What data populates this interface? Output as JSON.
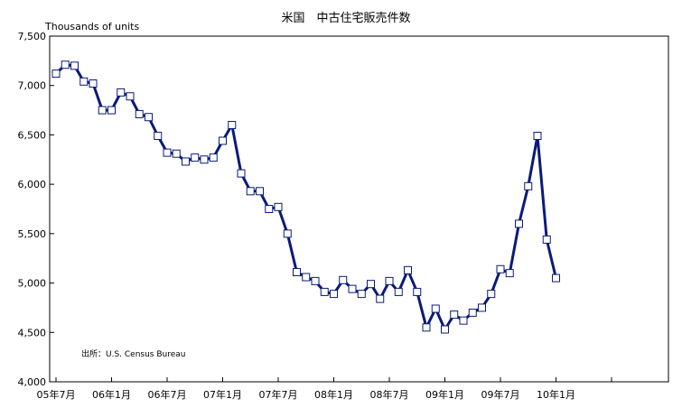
{
  "chart_data": {
    "type": "line",
    "title": "米国　中古住宅販売件数",
    "ylabel": "Thousands of units",
    "source": "出所：U.S. Census Bureau",
    "ylim": [
      4000,
      7500
    ],
    "y_ticks": [
      "4,000",
      "4,500",
      "5,000",
      "5,500",
      "6,000",
      "6,500",
      "7,000",
      "7,500"
    ],
    "x_ticks": [
      "05年7月",
      "06年1月",
      "06年7月",
      "07年1月",
      "07年7月",
      "08年1月",
      "08年7月",
      "09年1月",
      "09年7月",
      "10年1月"
    ],
    "grid": false,
    "colors": {
      "line": "#0a1a7a",
      "marker_fill": "#ffffff",
      "marker_stroke": "#0a1a7a"
    },
    "series": [
      {
        "values": [
          7120,
          7210,
          7200,
          7040,
          7020,
          6750,
          6750,
          6930,
          6890,
          6710,
          6680,
          6490,
          6320,
          6310,
          6230,
          6270,
          6250,
          6270,
          6440,
          6600,
          6110,
          5930,
          5930,
          5750,
          5770,
          5500,
          5110,
          5060,
          5020,
          4910,
          4890,
          5030,
          4940,
          4890,
          4990,
          4840,
          5020,
          4910,
          5130,
          4910,
          4550,
          4740,
          4530,
          4680,
          4620,
          4700,
          4750,
          4890,
          5140,
          5100,
          5600,
          5980,
          6490,
          5440,
          5050
        ]
      }
    ]
  }
}
